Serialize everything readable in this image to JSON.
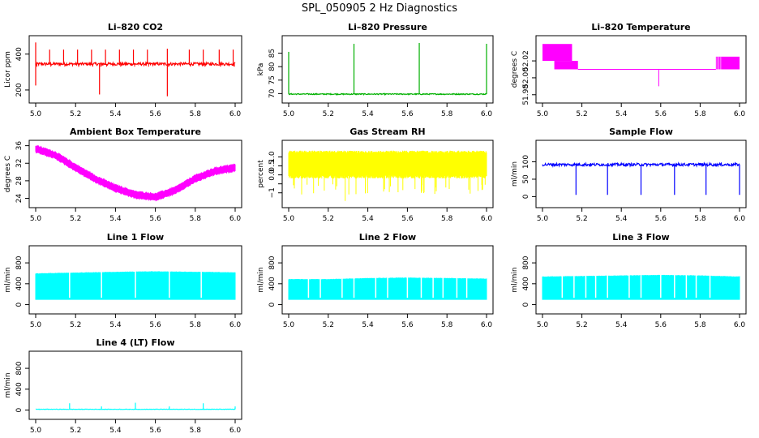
{
  "page_title": "SPL_050905  2 Hz Diagnostics",
  "chart_data": [
    {
      "id": "co2",
      "type": "line",
      "title": "Li–820 CO2",
      "ylabel": "Licor ppm",
      "color": "#ff0000",
      "xlim": [
        5.0,
        6.0
      ],
      "ylim": [
        150,
        480
      ],
      "xticks": [
        5.0,
        5.2,
        5.4,
        5.6,
        5.8,
        6.0
      ],
      "xtick_labels": [
        "5.0",
        "5.2",
        "5.4",
        "5.6",
        "5.8",
        "6.0"
      ],
      "yticks": [
        200,
        400
      ],
      "ytick_labels": [
        "200",
        "400"
      ],
      "series": [
        {
          "name": "CO2",
          "baseline": 345,
          "noise": 8,
          "spikes": [
            {
              "x": 5.0,
              "y": 465
            },
            {
              "x": 5.0,
              "y": 225
            },
            {
              "x": 5.07,
              "y": 425
            },
            {
              "x": 5.14,
              "y": 425
            },
            {
              "x": 5.21,
              "y": 425
            },
            {
              "x": 5.28,
              "y": 425
            },
            {
              "x": 5.32,
              "y": 175
            },
            {
              "x": 5.35,
              "y": 425
            },
            {
              "x": 5.42,
              "y": 425
            },
            {
              "x": 5.49,
              "y": 425
            },
            {
              "x": 5.56,
              "y": 425
            },
            {
              "x": 5.66,
              "y": 165
            },
            {
              "x": 5.66,
              "y": 430
            },
            {
              "x": 5.77,
              "y": 425
            },
            {
              "x": 5.84,
              "y": 425
            },
            {
              "x": 5.92,
              "y": 425
            },
            {
              "x": 5.99,
              "y": 425
            }
          ]
        }
      ]
    },
    {
      "id": "pressure",
      "type": "line",
      "title": "Li–820 Pressure",
      "ylabel": "kPa",
      "color": "#00b000",
      "xlim": [
        5.0,
        6.0
      ],
      "ylim": [
        68,
        90
      ],
      "xticks": [
        5.0,
        5.2,
        5.4,
        5.6,
        5.8,
        6.0
      ],
      "xtick_labels": [
        "5.0",
        "5.2",
        "5.4",
        "5.6",
        "5.8",
        "6.0"
      ],
      "yticks": [
        70,
        75,
        80,
        85
      ],
      "ytick_labels": [
        "70",
        "75",
        "80",
        "85"
      ],
      "series": [
        {
          "name": "Pressure",
          "baseline": 69.8,
          "noise": 0.2,
          "spikes": [
            {
              "x": 5.0,
              "y": 85.5
            },
            {
              "x": 5.33,
              "y": 88.5
            },
            {
              "x": 5.66,
              "y": 88.8
            },
            {
              "x": 6.0,
              "y": 88.5
            }
          ]
        }
      ]
    },
    {
      "id": "temperature",
      "type": "line",
      "title": "Li–820 Temperature",
      "ylabel": "degrees C",
      "color": "#ff00ff",
      "xlim": [
        5.0,
        6.0
      ],
      "ylim": [
        51.975,
        52.045
      ],
      "xticks": [
        5.0,
        5.2,
        5.4,
        5.6,
        5.8,
        6.0
      ],
      "xtick_labels": [
        "5.0",
        "5.2",
        "5.4",
        "5.6",
        "5.8",
        "6.0"
      ],
      "yticks": [
        51.98,
        52.0,
        52.02
      ],
      "ytick_labels": [
        "51.98",
        "52.00",
        "52.02"
      ],
      "segments": [
        {
          "x0": 5.0,
          "x1": 5.15,
          "y0": 52.02,
          "y1": 52.04
        },
        {
          "x0": 5.06,
          "x1": 5.18,
          "y0": 52.01,
          "y1": 52.02
        },
        {
          "x0": 5.18,
          "x1": 5.88,
          "y0": 52.01,
          "y1": 52.01
        },
        {
          "x0": 5.88,
          "x1": 6.0,
          "y0": 52.01,
          "y1": 52.025
        }
      ],
      "spikes": [
        {
          "x": 5.59,
          "y": 51.99
        }
      ]
    },
    {
      "id": "ambient",
      "type": "line",
      "title": "Ambient Box Temperature",
      "ylabel": "degrees C",
      "color": "#ff00ff",
      "xlim": [
        5.0,
        6.0
      ],
      "ylim": [
        22.8,
        36.3
      ],
      "xticks": [
        5.0,
        5.2,
        5.4,
        5.6,
        5.8,
        6.0
      ],
      "xtick_labels": [
        "5.0",
        "5.2",
        "5.4",
        "5.6",
        "5.8",
        "6.0"
      ],
      "yticks": [
        24,
        28,
        32,
        36
      ],
      "ytick_labels": [
        "24",
        "28",
        "32",
        "36"
      ],
      "series": [
        {
          "name": "Ambient",
          "x": [
            5.0,
            5.1,
            5.2,
            5.3,
            5.4,
            5.5,
            5.6,
            5.7,
            5.8,
            5.9,
            6.0
          ],
          "values": [
            35.3,
            33.8,
            31.0,
            28.4,
            26.3,
            24.8,
            24.3,
            25.8,
            28.5,
            30.2,
            31.0
          ],
          "noise_band": 0.9
        }
      ]
    },
    {
      "id": "rh",
      "type": "line",
      "title": "Gas Stream RH",
      "ylabel": "percent",
      "color": "#ffff00",
      "xlim": [
        5.0,
        6.0
      ],
      "ylim": [
        -1.6,
        1.7
      ],
      "xticks": [
        5.0,
        5.2,
        5.4,
        5.6,
        5.8,
        6.0
      ],
      "xtick_labels": [
        "5.0",
        "5.2",
        "5.4",
        "5.6",
        "5.8",
        "6.0"
      ],
      "yticks": [
        -1.0,
        -0.5,
        0.0,
        0.5,
        1.0
      ],
      "ytick_labels": [
        "−1",
        "",
        "0.0",
        "0.5",
        "1.0"
      ],
      "series": [
        {
          "name": "RH",
          "upper": 1.35,
          "lower": -0.2,
          "min_dip": -1.45
        }
      ]
    },
    {
      "id": "sample",
      "type": "line",
      "title": "Sample Flow",
      "ylabel": "ml/min",
      "color": "#0000ff",
      "xlim": [
        5.0,
        6.0
      ],
      "ylim": [
        -20,
        150
      ],
      "xticks": [
        5.0,
        5.2,
        5.4,
        5.6,
        5.8,
        6.0
      ],
      "xtick_labels": [
        "5.0",
        "5.2",
        "5.4",
        "5.6",
        "5.8",
        "6.0"
      ],
      "yticks": [
        0,
        50,
        100
      ],
      "ytick_labels": [
        "0",
        "50",
        "100"
      ],
      "series": [
        {
          "name": "Sample Flow",
          "baseline": 92,
          "noise": 4,
          "dips": [
            {
              "x": 5.17,
              "y": 5
            },
            {
              "x": 5.33,
              "y": 5
            },
            {
              "x": 5.5,
              "y": 5
            },
            {
              "x": 5.67,
              "y": 5
            },
            {
              "x": 5.83,
              "y": 5
            },
            {
              "x": 6.0,
              "y": 5
            }
          ]
        }
      ]
    },
    {
      "id": "line1",
      "type": "area",
      "title": "Line 1 Flow",
      "ylabel": "ml/min",
      "color": "#00ffff",
      "xlim": [
        5.0,
        6.0
      ],
      "ylim": [
        -100,
        1050
      ],
      "xticks": [
        5.0,
        5.2,
        5.4,
        5.6,
        5.8,
        6.0
      ],
      "xtick_labels": [
        "5.0",
        "5.2",
        "5.4",
        "5.6",
        "5.8",
        "6.0"
      ],
      "yticks": [
        0,
        400,
        800
      ],
      "ytick_labels": [
        "0",
        "400",
        "800"
      ],
      "series": [
        {
          "name": "Line 1",
          "upper": [
            590,
            605,
            620,
            630,
            620,
            610
          ],
          "lower": 100,
          "gaps": [
            5.17,
            5.33,
            5.5,
            5.67,
            5.83
          ]
        }
      ]
    },
    {
      "id": "line2",
      "type": "area",
      "title": "Line 2 Flow",
      "ylabel": "ml/min",
      "color": "#00ffff",
      "xlim": [
        5.0,
        6.0
      ],
      "ylim": [
        -100,
        1050
      ],
      "xticks": [
        5.0,
        5.2,
        5.4,
        5.6,
        5.8,
        6.0
      ],
      "xtick_labels": [
        "5.0",
        "5.2",
        "5.4",
        "5.6",
        "5.8",
        "6.0"
      ],
      "yticks": [
        0,
        400,
        800
      ],
      "ytick_labels": [
        "0",
        "400",
        "800"
      ],
      "series": [
        {
          "name": "Line 2",
          "upper": [
            480,
            480,
            500,
            510,
            500,
            490
          ],
          "lower": 100,
          "gaps": [
            5.1,
            5.16,
            5.27,
            5.33,
            5.44,
            5.5,
            5.6,
            5.67,
            5.73,
            5.78,
            5.85,
            5.9
          ]
        }
      ]
    },
    {
      "id": "line3",
      "type": "area",
      "title": "Line 3 Flow",
      "ylabel": "ml/min",
      "color": "#00ffff",
      "xlim": [
        5.0,
        6.0
      ],
      "ylim": [
        -100,
        1050
      ],
      "xticks": [
        5.0,
        5.2,
        5.4,
        5.6,
        5.8,
        6.0
      ],
      "xtick_labels": [
        "5.0",
        "5.2",
        "5.4",
        "5.6",
        "5.8",
        "6.0"
      ],
      "yticks": [
        0,
        400,
        800
      ],
      "ytick_labels": [
        "0",
        "400",
        "800"
      ],
      "series": [
        {
          "name": "Line 3",
          "upper": [
            530,
            540,
            550,
            560,
            550,
            530
          ],
          "lower": 100,
          "gaps": [
            5.1,
            5.16,
            5.22,
            5.27,
            5.33,
            5.44,
            5.5,
            5.6,
            5.67,
            5.73,
            5.78,
            5.85
          ]
        }
      ]
    },
    {
      "id": "line4",
      "type": "line",
      "title": "Line 4 (LT) Flow",
      "ylabel": "ml/min",
      "color": "#00ffff",
      "xlim": [
        5.0,
        6.0
      ],
      "ylim": [
        -100,
        1050
      ],
      "xticks": [
        5.0,
        5.2,
        5.4,
        5.6,
        5.8,
        6.0
      ],
      "xtick_labels": [
        "5.0",
        "5.2",
        "5.4",
        "5.6",
        "5.8",
        "6.0"
      ],
      "yticks": [
        0,
        400,
        800
      ],
      "ytick_labels": [
        "0",
        "400",
        "800"
      ],
      "series": [
        {
          "name": "Line 4",
          "baseline": 15,
          "noise": 4,
          "spikes": [
            {
              "x": 5.17,
              "y": 130
            },
            {
              "x": 5.33,
              "y": 70
            },
            {
              "x": 5.5,
              "y": 140
            },
            {
              "x": 5.67,
              "y": 70
            },
            {
              "x": 5.84,
              "y": 130
            },
            {
              "x": 6.0,
              "y": 70
            }
          ]
        }
      ]
    }
  ]
}
